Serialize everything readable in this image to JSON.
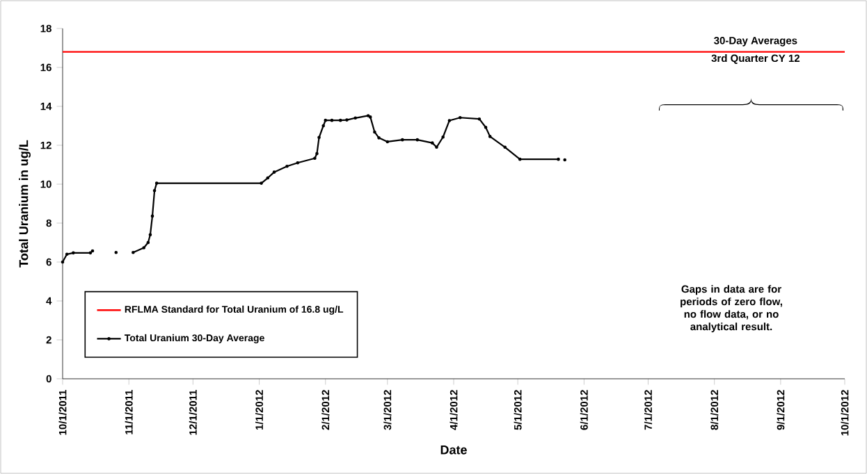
{
  "chart_data": {
    "type": "line",
    "xlabel": "Date",
    "ylabel": "Total Uranium in ug/L",
    "x": [
      "2011-10-01",
      "2011-10-03",
      "2011-10-06",
      "2011-10-14",
      "2011-10-15",
      "2011-10-20",
      "2011-10-26",
      "2011-10-30",
      "2011-11-03",
      "2011-11-08",
      "2011-11-10",
      "2011-11-11",
      "2011-11-12",
      "2011-11-13",
      "2011-11-14",
      "2012-01-02",
      "2012-01-05",
      "2012-01-08",
      "2012-01-14",
      "2012-01-19",
      "2012-01-27",
      "2012-01-28",
      "2012-01-29",
      "2012-01-31",
      "2012-02-01",
      "2012-02-04",
      "2012-02-08",
      "2012-02-11",
      "2012-02-15",
      "2012-02-21",
      "2012-02-22",
      "2012-02-24",
      "2012-02-26",
      "2012-03-01",
      "2012-03-08",
      "2012-03-15",
      "2012-03-22",
      "2012-03-24",
      "2012-03-27",
      "2012-03-30",
      "2012-04-04",
      "2012-04-13",
      "2012-04-16",
      "2012-04-18",
      "2012-04-25",
      "2012-05-02",
      "2012-05-20",
      "2012-05-21",
      "2012-05-23"
    ],
    "series": [
      {
        "name": "Total Uranium 30-Day Average",
        "color": "#000000",
        "values": [
          6.0,
          6.4,
          6.47,
          6.47,
          6.57,
          null,
          6.49,
          null,
          6.49,
          6.73,
          7.0,
          7.4,
          8.36,
          9.67,
          10.05,
          10.05,
          10.32,
          10.62,
          10.92,
          11.1,
          11.33,
          11.57,
          12.4,
          13.0,
          13.28,
          13.28,
          13.28,
          13.3,
          13.4,
          13.52,
          13.45,
          12.68,
          12.38,
          12.18,
          12.28,
          12.28,
          12.12,
          11.9,
          12.42,
          13.27,
          13.42,
          13.35,
          12.92,
          12.45,
          11.9,
          11.28,
          11.28,
          null,
          11.25
        ]
      }
    ],
    "xlim": [
      "2011-10-01",
      "2012-10-01"
    ],
    "xticks": [
      {
        "value": "2011-10-01",
        "label": "10/1/2011"
      },
      {
        "value": "2011-11-01",
        "label": "11/1/2011"
      },
      {
        "value": "2011-12-01",
        "label": "12/1/2011"
      },
      {
        "value": "2012-01-01",
        "label": "1/1/2012"
      },
      {
        "value": "2012-02-01",
        "label": "2/1/2012"
      },
      {
        "value": "2012-03-01",
        "label": "3/1/2012"
      },
      {
        "value": "2012-04-01",
        "label": "4/1/2012"
      },
      {
        "value": "2012-05-01",
        "label": "5/1/2012"
      },
      {
        "value": "2012-06-01",
        "label": "6/1/2012"
      },
      {
        "value": "2012-07-01",
        "label": "7/1/2012"
      },
      {
        "value": "2012-08-01",
        "label": "8/1/2012"
      },
      {
        "value": "2012-09-01",
        "label": "9/1/2012"
      },
      {
        "value": "2012-10-01",
        "label": "10/1/2012"
      }
    ],
    "ylim": [
      0,
      18
    ],
    "yticks": [
      0,
      2,
      4,
      6,
      8,
      10,
      12,
      14,
      16,
      18
    ],
    "ref_lines": [
      {
        "axis": "y",
        "value": 16.8,
        "label": "RFLMA Standard for Total Uranium of 16.8 ug/L",
        "color": "#ff0000"
      }
    ],
    "annotations": [
      "30-Day Averages",
      "3rd Quarter CY 12",
      "Gaps in data are for periods of zero flow, no flow data, or no analytical result."
    ],
    "legend": "bottom left",
    "marker": "circle"
  }
}
